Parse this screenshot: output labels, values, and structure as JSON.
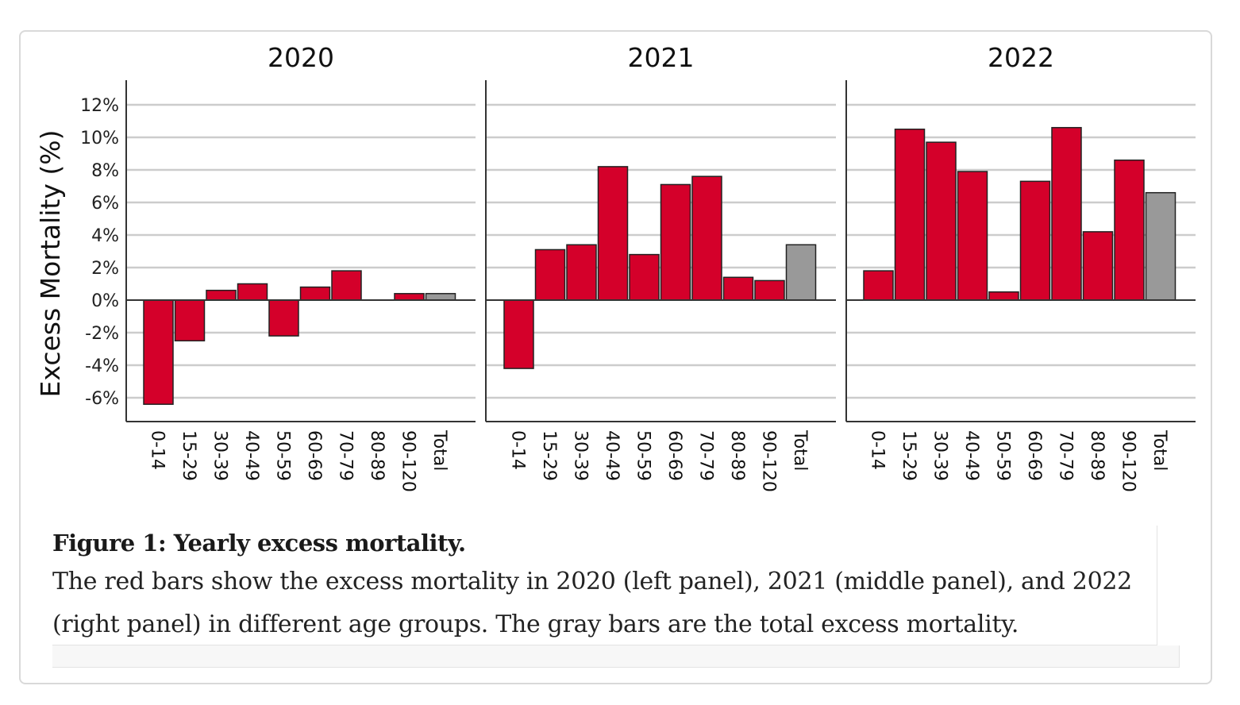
{
  "chart_data": {
    "type": "bar",
    "ylabel": "Excess Mortality (%)",
    "ylim": [
      -7.5,
      12.5
    ],
    "yticks": [
      "12%",
      "10%",
      "8%",
      "6%",
      "4%",
      "2%",
      "0%",
      "-2%",
      "-4%",
      "-6%"
    ],
    "ytick_values": [
      12,
      10,
      8,
      6,
      4,
      2,
      0,
      -2,
      -4,
      -6
    ],
    "grid": true,
    "categories": [
      "0-14",
      "15-29",
      "30-39",
      "40-49",
      "50-59",
      "60-69",
      "70-79",
      "80-89",
      "90-120",
      "Total"
    ],
    "colors": {
      "age_group": "#d4002a",
      "total": "#999999",
      "grid": "#cccccc",
      "axis": "#333333"
    },
    "panels": [
      {
        "title": "2020",
        "values": [
          -6.4,
          -2.5,
          0.6,
          1.0,
          -2.2,
          0.8,
          1.8,
          0.0,
          0.4,
          0.4
        ]
      },
      {
        "title": "2021",
        "values": [
          -4.2,
          3.1,
          3.4,
          8.2,
          2.8,
          7.1,
          7.6,
          1.4,
          1.2,
          3.4
        ]
      },
      {
        "title": "2022",
        "values": [
          1.8,
          10.5,
          9.7,
          7.9,
          0.5,
          7.3,
          10.6,
          4.2,
          8.6,
          6.6
        ]
      }
    ]
  },
  "caption": {
    "title": "Figure 1: Yearly excess mortality.",
    "text": "The red bars show the excess mortality in 2020 (left panel), 2021 (middle panel), and 2022 (right panel) in different age groups. The gray bars are the total excess mortality."
  }
}
